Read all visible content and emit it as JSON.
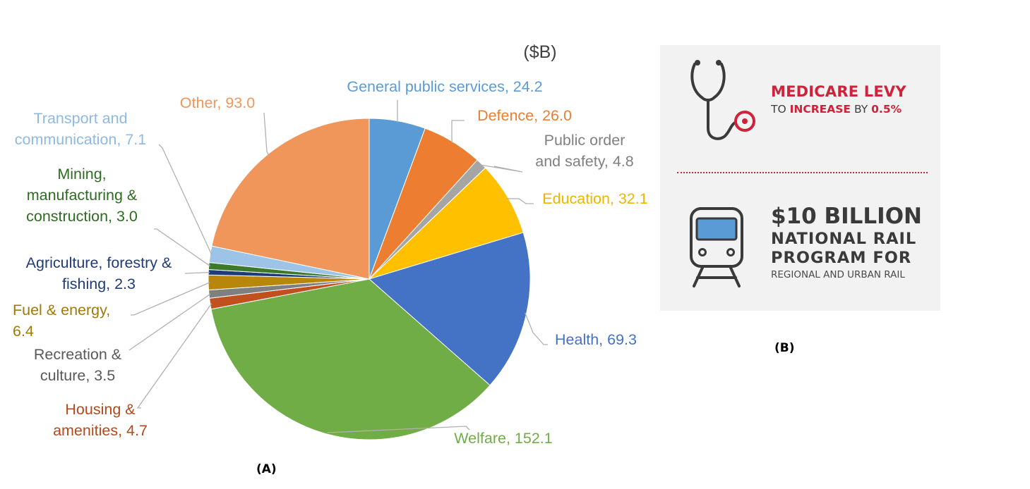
{
  "chart_data": {
    "type": "pie",
    "unit_label": "($B)",
    "start_angle_deg": 0,
    "direction": "clockwise",
    "slices": [
      {
        "label": "General public services",
        "value": 24.2,
        "display": "General public services, 24.2",
        "color": "#5b9bd5",
        "text_color": "#5b9bd5"
      },
      {
        "label": "Defence",
        "value": 26.0,
        "display": "Defence, 26.0",
        "color": "#ed7d31",
        "text_color": "#ed7d31"
      },
      {
        "label": "Public order and safety",
        "value": 4.8,
        "display": "Public order and safety, 4.8",
        "color": "#a5a5a5",
        "text_color": "#808080"
      },
      {
        "label": "Education",
        "value": 32.1,
        "display": "Education, 32.1",
        "color": "#ffc000",
        "text_color": "#f0b400"
      },
      {
        "label": "Health",
        "value": 69.3,
        "display": "Health, 69.3",
        "color": "#4472c4",
        "text_color": "#4472c4"
      },
      {
        "label": "Welfare",
        "value": 152.1,
        "display": "Welfare, 152.1",
        "color": "#70ad47",
        "text_color": "#70ad47"
      },
      {
        "label": "Housing & amenities",
        "value": 4.7,
        "display": "Housing & amenities, 4.7",
        "color": "#c0501e",
        "text_color": "#b5471a"
      },
      {
        "label": "Recreation & culture",
        "value": 3.5,
        "display": "Recreation & culture, 3.5",
        "color": "#7f7f7f",
        "text_color": "#595959"
      },
      {
        "label": "Fuel & energy",
        "value": 6.4,
        "display": "Fuel & energy, 6.4",
        "color": "#b8860b",
        "text_color": "#a0790a"
      },
      {
        "label": "Agriculture, forestry & fishing",
        "value": 2.3,
        "display": "Agriculture, forestry & fishing, 2.3",
        "color": "#1f3b7a",
        "text_color": "#1f3b7a"
      },
      {
        "label": "Mining, manufacturing & construction",
        "value": 3.0,
        "display": "Mining, manufacturing & construction, 3.0",
        "color": "#3a7a2a",
        "text_color": "#2e6b22"
      },
      {
        "label": "Transport and communication",
        "value": 7.1,
        "display": "Transport and communication, 7.1",
        "color": "#9dc3e6",
        "text_color": "#8fb9e0"
      },
      {
        "label": "Other",
        "value": 93.0,
        "display": "Other, 93.0",
        "color": "#f0965a",
        "text_color": "#f0965a"
      }
    ]
  },
  "figure_labels": {
    "a": "(A)",
    "b": "(B)"
  },
  "panel_b": {
    "medicare_line1": "MEDICARE LEVY",
    "medicare_line2_to": "TO",
    "medicare_line2_increase": "INCREASE",
    "medicare_line2_by": "BY",
    "medicare_line2_pct": "0.5%",
    "rail_line1": "$10 BILLION",
    "rail_line2": "NATIONAL RAIL",
    "rail_line3": "PROGRAM FOR",
    "rail_line4": "REGIONAL AND URBAN RAIL",
    "accent_color": "#d0223a"
  }
}
